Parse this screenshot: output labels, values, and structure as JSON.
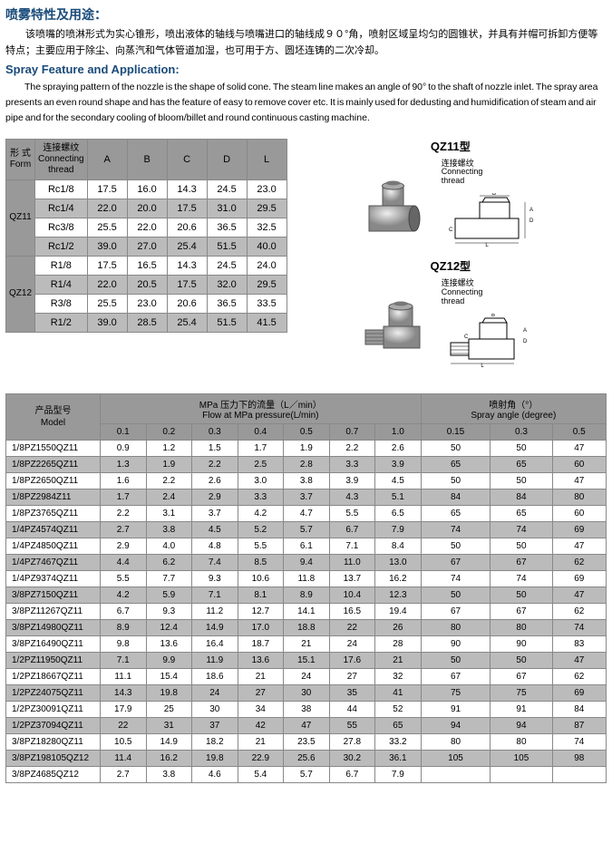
{
  "titles": {
    "cn": "喷雾特性及用途：",
    "en": "Spray Feature and Application:"
  },
  "paragraphs": {
    "cn": "该喷嘴的喷淋形式为实心锥形，喷出液体的轴线与喷嘴进口的轴线成９０°角，喷射区域呈均匀的圆锥状，并具有并帽可拆卸方便等特点；主要应用于除尘、向蒸汽和气体管道加湿，也可用于方、圆坯连铸的二次冷却。",
    "en": "The spraying pattern of the nozzle is the shape of solid cone. The steam line makes an angle of 90° to the shaft of nozzle inlet. The spray area presents an even round shape and has the feature of easy to remove cover etc. It is mainly used for dedusting and humidification of steam and air pipe and for the secondary cooling of bloom/billet and round continuous casting machine."
  },
  "dimTable": {
    "headers": {
      "form": "形 式\nForm",
      "thread": "连接螺纹\nConnecting\nthread",
      "cols": [
        "A",
        "B",
        "C",
        "D",
        "L"
      ]
    },
    "groups": [
      {
        "form": "QZ11",
        "rows": [
          {
            "t": "Rc1/8",
            "v": [
              "17.5",
              "16.0",
              "14.3",
              "24.5",
              "23.0"
            ]
          },
          {
            "t": "Rc1/4",
            "v": [
              "22.0",
              "20.0",
              "17.5",
              "31.0",
              "29.5"
            ]
          },
          {
            "t": "Rc3/8",
            "v": [
              "25.5",
              "22.0",
              "20.6",
              "36.5",
              "32.5"
            ]
          },
          {
            "t": "Rc1/2",
            "v": [
              "39.0",
              "27.0",
              "25.4",
              "51.5",
              "40.0"
            ]
          }
        ]
      },
      {
        "form": "QZ12",
        "rows": [
          {
            "t": "R1/8",
            "v": [
              "17.5",
              "16.5",
              "14.3",
              "24.5",
              "24.0"
            ]
          },
          {
            "t": "R1/4",
            "v": [
              "22.0",
              "20.5",
              "17.5",
              "32.0",
              "29.5"
            ]
          },
          {
            "t": "R3/8",
            "v": [
              "25.5",
              "23.0",
              "20.6",
              "36.5",
              "33.5"
            ]
          },
          {
            "t": "R1/2",
            "v": [
              "39.0",
              "28.5",
              "25.4",
              "51.5",
              "41.5"
            ]
          }
        ]
      }
    ]
  },
  "figs": {
    "l1": "QZ11",
    "l2": "QZ12",
    "xing": "型",
    "diagCaption": "连接螺纹\nConnecting\nthread"
  },
  "mainTable": {
    "headers": {
      "model": "产品型号\nModel",
      "flow": "MPa  压力下的流量（L／min）\nFlow at MPa pressure(L/min)",
      "angle": "喷射角（°）\nSpray angle (degree)",
      "flowCols": [
        "0.1",
        "0.2",
        "0.3",
        "0.4",
        "0.5",
        "0.7",
        "1.0"
      ],
      "angleCols": [
        "0.15",
        "0.3",
        "0.5"
      ]
    },
    "rows": [
      {
        "m": "1/8PZ1550QZ11",
        "f": [
          "0.9",
          "1.2",
          "1.5",
          "1.7",
          "1.9",
          "2.2",
          "2.6"
        ],
        "a": [
          "50",
          "50",
          "47"
        ]
      },
      {
        "m": "1/8PZ2265QZ11",
        "f": [
          "1.3",
          "1.9",
          "2.2",
          "2.5",
          "2.8",
          "3.3",
          "3.9"
        ],
        "a": [
          "65",
          "65",
          "60"
        ]
      },
      {
        "m": "1/8PZ2650QZ11",
        "f": [
          "1.6",
          "2.2",
          "2.6",
          "3.0",
          "3.8",
          "3.9",
          "4.5"
        ],
        "a": [
          "50",
          "50",
          "47"
        ]
      },
      {
        "m": "1/8PZ2984Z11",
        "f": [
          "1.7",
          "2.4",
          "2.9",
          "3.3",
          "3.7",
          "4.3",
          "5.1"
        ],
        "a": [
          "84",
          "84",
          "80"
        ]
      },
      {
        "m": "1/8PZ3765QZ11",
        "f": [
          "2.2",
          "3.1",
          "3.7",
          "4.2",
          "4.7",
          "5.5",
          "6.5"
        ],
        "a": [
          "65",
          "65",
          "60"
        ]
      },
      {
        "m": "1/4PZ4574QZ11",
        "f": [
          "2.7",
          "3.8",
          "4.5",
          "5.2",
          "5.7",
          "6.7",
          "7.9"
        ],
        "a": [
          "74",
          "74",
          "69"
        ]
      },
      {
        "m": "1/4PZ4850QZ11",
        "f": [
          "2.9",
          "4.0",
          "4.8",
          "5.5",
          "6.1",
          "7.1",
          "8.4"
        ],
        "a": [
          "50",
          "50",
          "47"
        ]
      },
      {
        "m": "1/4PZ7467QZ11",
        "f": [
          "4.4",
          "6.2",
          "7.4",
          "8.5",
          "9.4",
          "11.0",
          "13.0"
        ],
        "a": [
          "67",
          "67",
          "62"
        ]
      },
      {
        "m": "1/4PZ9374QZ11",
        "f": [
          "5.5",
          "7.7",
          "9.3",
          "10.6",
          "11.8",
          "13.7",
          "16.2"
        ],
        "a": [
          "74",
          "74",
          "69"
        ]
      },
      {
        "m": "3/8PZ7150QZ11",
        "f": [
          "4.2",
          "5.9",
          "7.1",
          "8.1",
          "8.9",
          "10.4",
          "12.3"
        ],
        "a": [
          "50",
          "50",
          "47"
        ]
      },
      {
        "m": "3/8PZ11267QZ11",
        "f": [
          "6.7",
          "9.3",
          "11.2",
          "12.7",
          "14.1",
          "16.5",
          "19.4"
        ],
        "a": [
          "67",
          "67",
          "62"
        ]
      },
      {
        "m": "3/8PZ14980QZ11",
        "f": [
          "8.9",
          "12.4",
          "14.9",
          "17.0",
          "18.8",
          "22",
          "26"
        ],
        "a": [
          "80",
          "80",
          "74"
        ]
      },
      {
        "m": "3/8PZ16490QZ11",
        "f": [
          "9.8",
          "13.6",
          "16.4",
          "18.7",
          "21",
          "24",
          "28"
        ],
        "a": [
          "90",
          "90",
          "83"
        ]
      },
      {
        "m": "1/2PZ11950QZ11",
        "f": [
          "7.1",
          "9.9",
          "11.9",
          "13.6",
          "15.1",
          "17.6",
          "21"
        ],
        "a": [
          "50",
          "50",
          "47"
        ]
      },
      {
        "m": "1/2PZ18667QZ11",
        "f": [
          "11.1",
          "15.4",
          "18.6",
          "21",
          "24",
          "27",
          "32"
        ],
        "a": [
          "67",
          "67",
          "62"
        ]
      },
      {
        "m": "1/2PZ24075QZ11",
        "f": [
          "14.3",
          "19.8",
          "24",
          "27",
          "30",
          "35",
          "41"
        ],
        "a": [
          "75",
          "75",
          "69"
        ]
      },
      {
        "m": "1/2PZ30091QZ11",
        "f": [
          "17.9",
          "25",
          "30",
          "34",
          "38",
          "44",
          "52"
        ],
        "a": [
          "91",
          "91",
          "84"
        ]
      },
      {
        "m": "1/2PZ37094QZ11",
        "f": [
          "22",
          "31",
          "37",
          "42",
          "47",
          "55",
          "65"
        ],
        "a": [
          "94",
          "94",
          "87"
        ]
      },
      {
        "m": "3/8PZ18280QZ11",
        "f": [
          "10.5",
          "14.9",
          "18.2",
          "21",
          "23.5",
          "27.8",
          "33.2"
        ],
        "a": [
          "80",
          "80",
          "74"
        ]
      },
      {
        "m": "3/8PZ198105QZ12",
        "f": [
          "11.4",
          "16.2",
          "19.8",
          "22.9",
          "25.6",
          "30.2",
          "36.1"
        ],
        "a": [
          "105",
          "105",
          "98"
        ]
      },
      {
        "m": "3/8PZ4685QZ12",
        "f": [
          "2.7",
          "3.8",
          "4.6",
          "5.4",
          "5.7",
          "6.7",
          "7.9"
        ],
        "a": [
          "",
          "",
          ""
        ]
      }
    ]
  },
  "diagLetters": [
    "A",
    "B",
    "C",
    "D",
    "L"
  ]
}
